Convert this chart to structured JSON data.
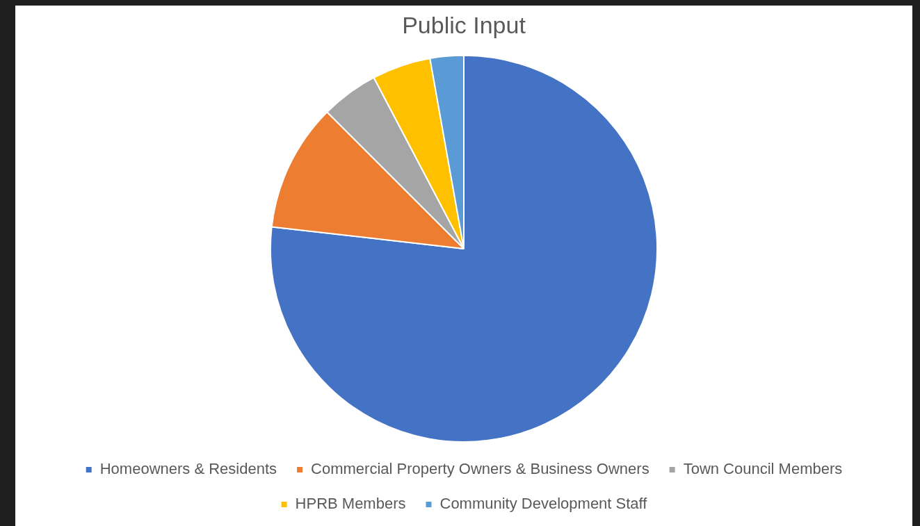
{
  "chart_data": {
    "type": "pie",
    "title": "Public Input",
    "categories": [
      "Homeowners & Residents",
      "Commercial Property Owners & Business Owners",
      "Town Council Members",
      "HPRB Members",
      "Community Development Staff"
    ],
    "values": [
      76.8,
      10.7,
      4.8,
      4.9,
      2.8
    ],
    "colors": [
      "#4472c4",
      "#ed7d31",
      "#a5a5a5",
      "#ffc000",
      "#5b9bd5"
    ],
    "legend": "bottom"
  }
}
